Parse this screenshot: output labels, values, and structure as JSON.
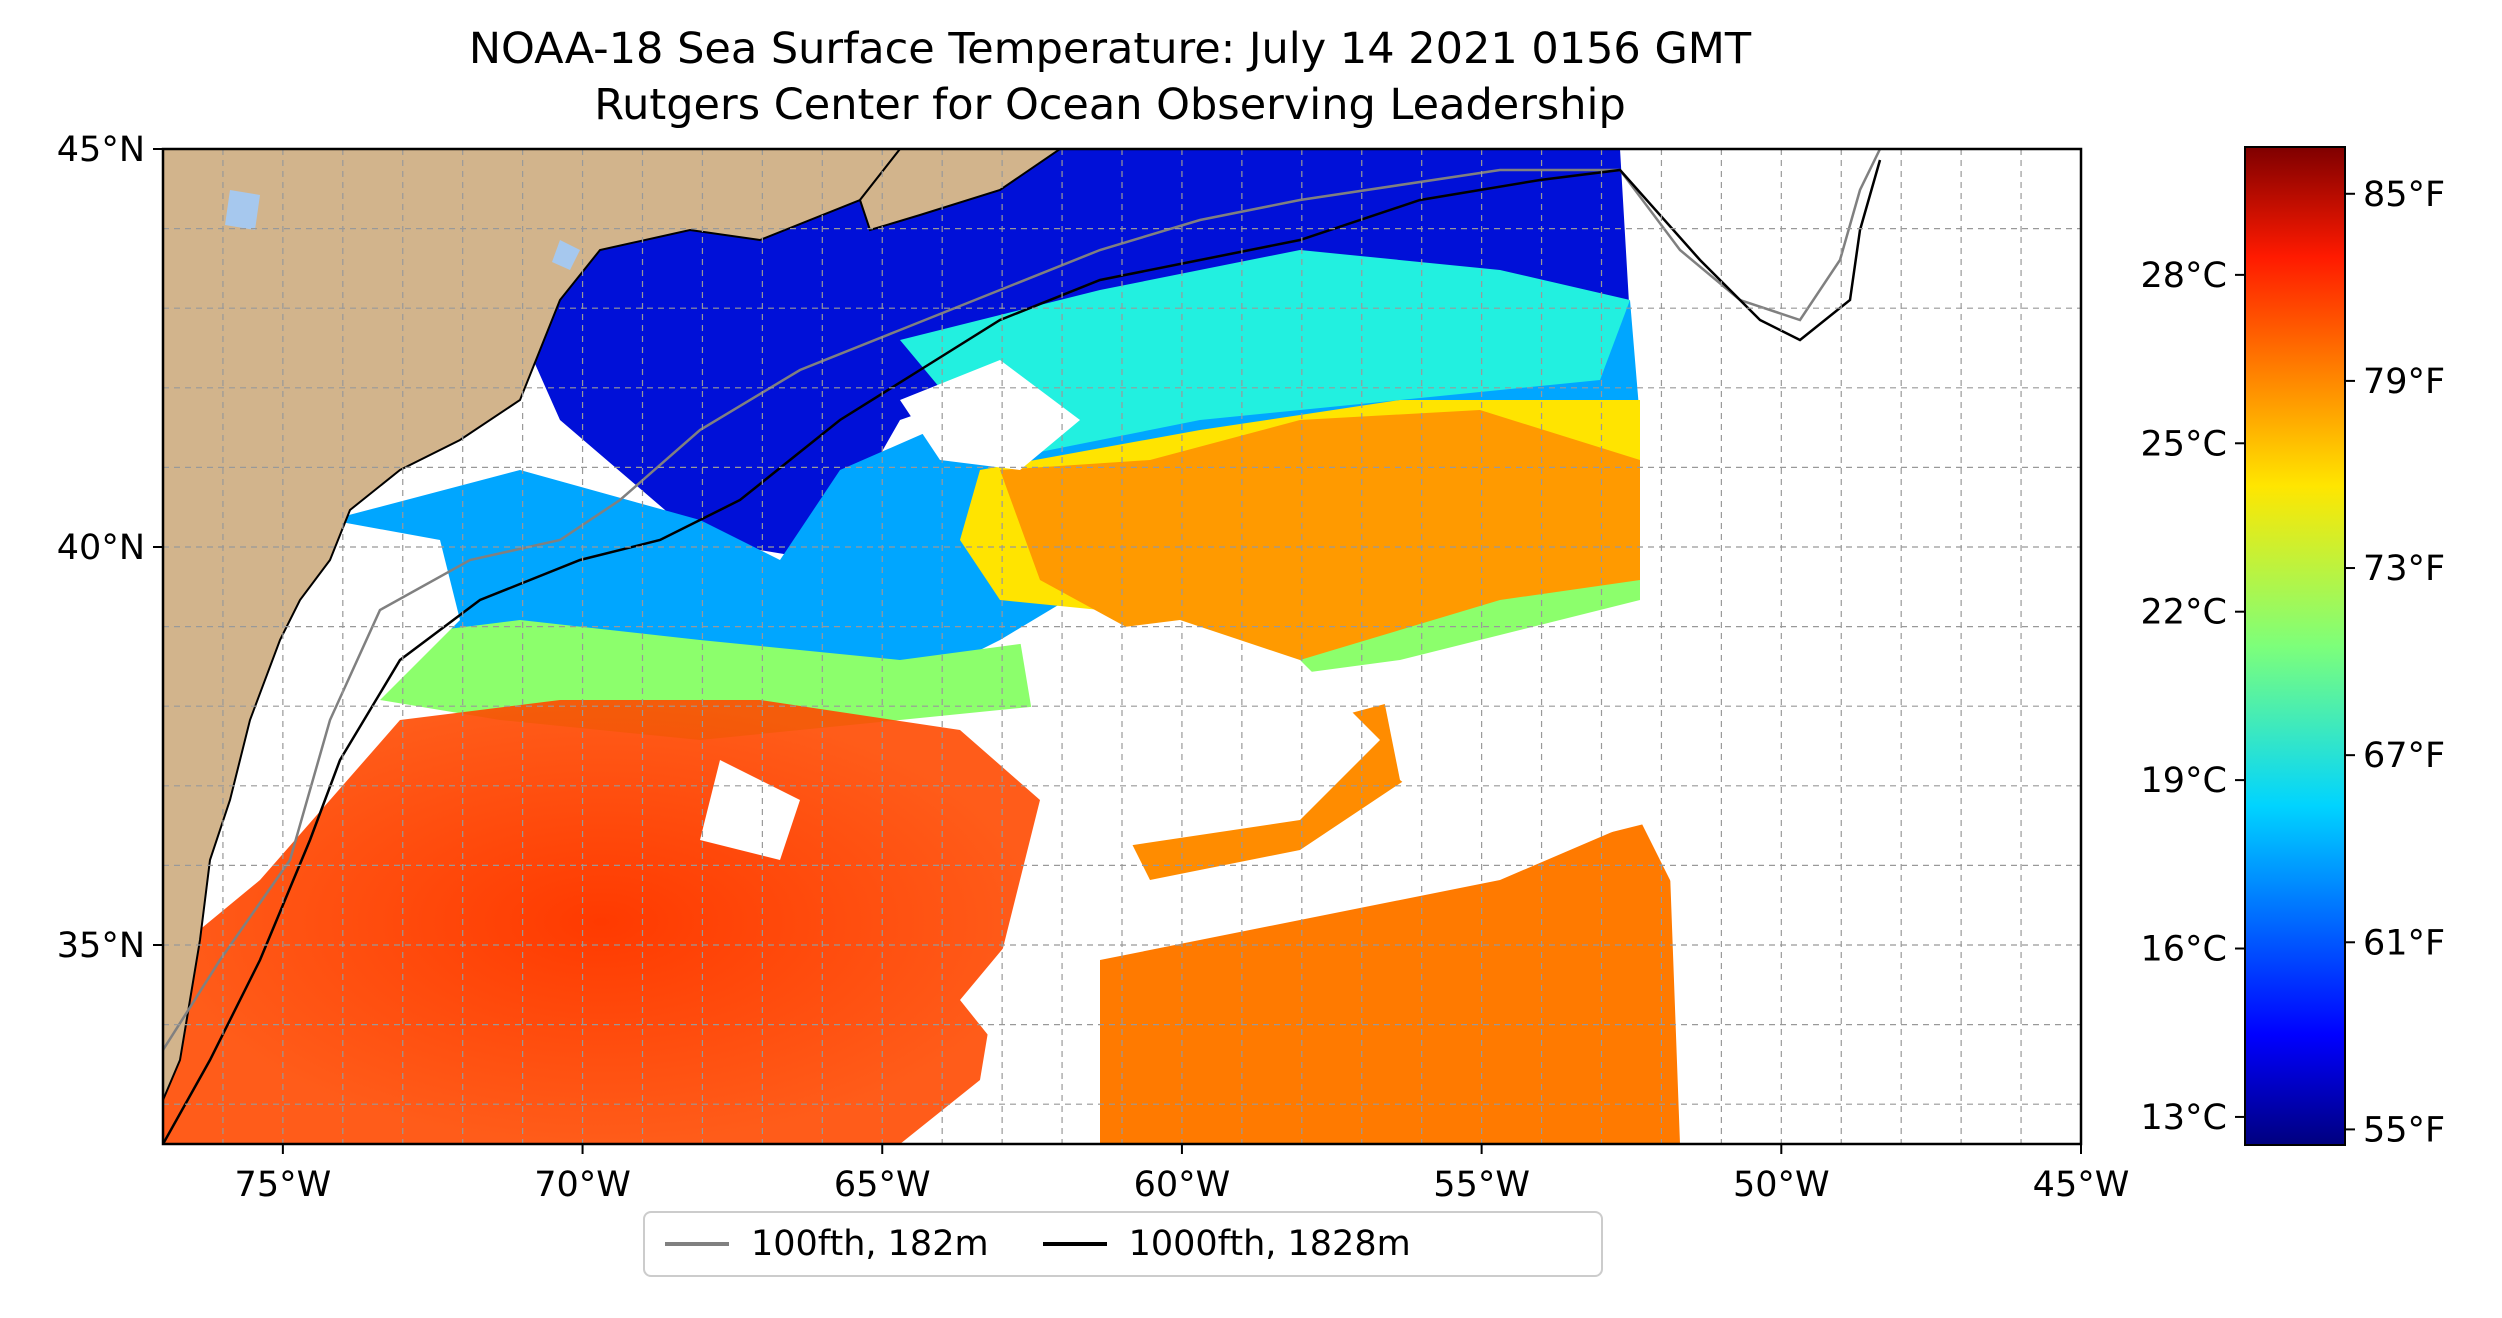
{
  "title_line1": "NOAA-18 Sea Surface Temperature: July 14 2021 0156 GMT",
  "title_line2": "Rutgers Center for Ocean Observing Leadership",
  "map": {
    "lon_range": [
      -77,
      -45
    ],
    "lat_range": [
      32.5,
      45
    ],
    "lon_ticks": [
      {
        "value": -75,
        "label": "75°W"
      },
      {
        "value": -70,
        "label": "70°W"
      },
      {
        "value": -65,
        "label": "65°W"
      },
      {
        "value": -60,
        "label": "60°W"
      },
      {
        "value": -55,
        "label": "55°W"
      },
      {
        "value": -50,
        "label": "50°W"
      },
      {
        "value": -45,
        "label": "45°W"
      }
    ],
    "lat_ticks": [
      {
        "value": 35,
        "label": "35°N"
      },
      {
        "value": 40,
        "label": "40°N"
      },
      {
        "value": 45,
        "label": "45°N"
      }
    ],
    "grid": true,
    "land_color": "#d2b48c",
    "water_body_color": "#a6c8ee"
  },
  "colorbar": {
    "colormap": "jet",
    "range_f": [
      54.5,
      86.5
    ],
    "celsius_ticks": [
      {
        "value": 13,
        "label": "13°C"
      },
      {
        "value": 16,
        "label": "16°C"
      },
      {
        "value": 19,
        "label": "19°C"
      },
      {
        "value": 22,
        "label": "22°C"
      },
      {
        "value": 25,
        "label": "25°C"
      },
      {
        "value": 28,
        "label": "28°C"
      }
    ],
    "fahrenheit_ticks": [
      {
        "value": 55,
        "label": "55°F"
      },
      {
        "value": 61,
        "label": "61°F"
      },
      {
        "value": 67,
        "label": "67°F"
      },
      {
        "value": 73,
        "label": "73°F"
      },
      {
        "value": 79,
        "label": "79°F"
      },
      {
        "value": 85,
        "label": "85°F"
      }
    ]
  },
  "legend": {
    "items": [
      {
        "label": "100fth, 182m",
        "color": "#808080"
      },
      {
        "label": "1000fth, 1828m",
        "color": "#000000"
      }
    ]
  }
}
